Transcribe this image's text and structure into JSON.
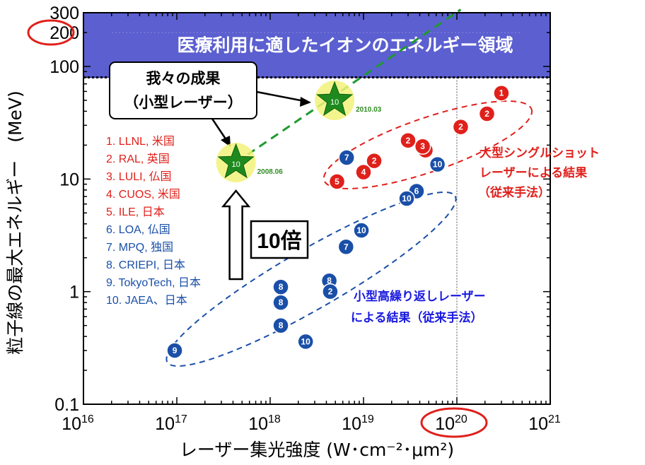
{
  "chart_data": {
    "type": "scatter",
    "title": "",
    "xlabel": "レーザー集光強度 (W･cm⁻²･μm²)",
    "ylabel": "粒子線の最大エネルギー　(MeV)",
    "x_scale": "log",
    "y_scale": "log",
    "xlim": [
      1e+16,
      1e+21
    ],
    "ylim": [
      0.1,
      300
    ],
    "x_ticks": [
      {
        "base": "10",
        "exp": "16"
      },
      {
        "base": "10",
        "exp": "17"
      },
      {
        "base": "10",
        "exp": "18"
      },
      {
        "base": "10",
        "exp": "19"
      },
      {
        "base": "10",
        "exp": "20"
      },
      {
        "base": "10",
        "exp": "21"
      }
    ],
    "y_ticks": [
      "0.1",
      "1",
      "10",
      "100",
      "200",
      "300"
    ],
    "medical_band": {
      "range": [
        80,
        300
      ],
      "label": "医療利用に適したイオンのエネルギー領域"
    },
    "legend": [
      {
        "id": 1,
        "text": "1. LLNL, 米国",
        "color": "#e0201b"
      },
      {
        "id": 2,
        "text": "2. RAL, 英国",
        "color": "#e0201b"
      },
      {
        "id": 3,
        "text": "3. LULI, 仏国",
        "color": "#e0201b"
      },
      {
        "id": 4,
        "text": "4. CUOS, 米国",
        "color": "#e0201b"
      },
      {
        "id": 5,
        "text": "5. ILE, 日本",
        "color": "#e0201b"
      },
      {
        "id": 6,
        "text": "6. LOA, 仏国",
        "color": "#1a4fa8"
      },
      {
        "id": 7,
        "text": "7. MPQ, 独国",
        "color": "#1a4fa8"
      },
      {
        "id": 8,
        "text": "8. CRIEPI, 日本",
        "color": "#1a4fa8"
      },
      {
        "id": 9,
        "text": "9. TokyoTech, 日本",
        "color": "#1a4fa8"
      },
      {
        "id": 10,
        "text": "10. JAEA、日本",
        "color": "#1a4fa8"
      }
    ],
    "series": [
      {
        "name": "大型シングルショットレーザーによる結果（従来手法）",
        "color": "#e0201b",
        "points": [
          {
            "x": 3e+20,
            "y": 58,
            "label": "1"
          },
          {
            "x": 2.1e+20,
            "y": 38,
            "label": "2"
          },
          {
            "x": 1.1e+20,
            "y": 29,
            "label": "2"
          },
          {
            "x": 3e+19,
            "y": 22,
            "label": "2"
          },
          {
            "x": 4.6e+19,
            "y": 18,
            "label": "2"
          },
          {
            "x": 1.3e+19,
            "y": 14.5,
            "label": "2"
          },
          {
            "x": 4.3e+19,
            "y": 19.5,
            "label": "3"
          },
          {
            "x": 1e+19,
            "y": 11.5,
            "label": "4"
          },
          {
            "x": 5.2e+18,
            "y": 9.5,
            "label": "5"
          }
        ]
      },
      {
        "name": "小型高繰り返しレーザーによる結果（従来手法）",
        "color": "#1a4fa8",
        "points": [
          {
            "x": 6.6e+18,
            "y": 15.5,
            "label": "7"
          },
          {
            "x": 6.2e+19,
            "y": 13.5,
            "label": "10"
          },
          {
            "x": 3.7e+19,
            "y": 7.8,
            "label": "6"
          },
          {
            "x": 2.9e+19,
            "y": 6.7,
            "label": "10"
          },
          {
            "x": 9.5e+18,
            "y": 3.5,
            "label": "10"
          },
          {
            "x": 6.5e+18,
            "y": 2.5,
            "label": "7"
          },
          {
            "x": 4.3e+18,
            "y": 1.25,
            "label": "8"
          },
          {
            "x": 4.4e+18,
            "y": 1.0,
            "label": "2"
          },
          {
            "x": 1.3e+18,
            "y": 1.1,
            "label": "8"
          },
          {
            "x": 1.3e+18,
            "y": 0.8,
            "label": "8"
          },
          {
            "x": 1.3e+18,
            "y": 0.5,
            "label": "8"
          },
          {
            "x": 2.4e+18,
            "y": 0.36,
            "label": "10"
          },
          {
            "x": 9.5e+16,
            "y": 0.3,
            "label": "9"
          }
        ]
      },
      {
        "name": "我々の成果（小型レーザー）",
        "color": "#1e8a1e",
        "points": [
          {
            "x": 4.3e+17,
            "y": 14,
            "label": "10",
            "date": "2008.06"
          },
          {
            "x": 4.9e+18,
            "y": 50,
            "label": "10",
            "date": "2010.03"
          }
        ]
      }
    ],
    "annotations": {
      "callout": [
        "我々の成果",
        "（小型レーザー）"
      ],
      "arrow_label": "10倍",
      "red_group_label": [
        "大型シングルショット",
        "レーザーによる結果",
        "（従来手法）"
      ],
      "blue_group_label": [
        "小型高繰り返しレーザー",
        "による結果（従来手法）"
      ],
      "highlighted_x_tick": "10^20",
      "highlighted_y_tick": "200"
    },
    "grid": false
  }
}
